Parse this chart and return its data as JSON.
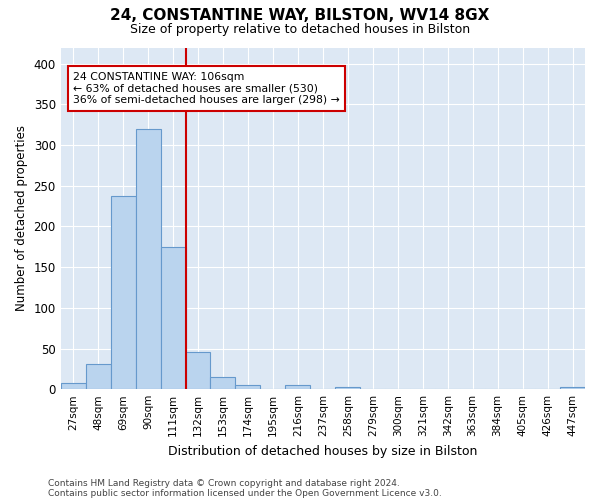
{
  "title_line1": "24, CONSTANTINE WAY, BILSTON, WV14 8GX",
  "title_line2": "Size of property relative to detached houses in Bilston",
  "xlabel": "Distribution of detached houses by size in Bilston",
  "ylabel": "Number of detached properties",
  "bin_labels": [
    "27sqm",
    "48sqm",
    "69sqm",
    "90sqm",
    "111sqm",
    "132sqm",
    "153sqm",
    "174sqm",
    "195sqm",
    "216sqm",
    "237sqm",
    "258sqm",
    "279sqm",
    "300sqm",
    "321sqm",
    "342sqm",
    "363sqm",
    "384sqm",
    "405sqm",
    "426sqm",
    "447sqm"
  ],
  "bar_values": [
    8,
    31,
    238,
    320,
    175,
    46,
    15,
    5,
    0,
    5,
    0,
    3,
    0,
    0,
    0,
    0,
    0,
    0,
    0,
    0,
    3
  ],
  "bar_color": "#bad4ee",
  "bar_edge_color": "#6699cc",
  "vline_color": "#cc0000",
  "vline_linewidth": 1.5,
  "vline_x": 4.5,
  "annotation_text": "24 CONSTANTINE WAY: 106sqm\n← 63% of detached houses are smaller (530)\n36% of semi-detached houses are larger (298) →",
  "annotation_box_color": "white",
  "annotation_box_edge_color": "#cc0000",
  "ylim": [
    0,
    420
  ],
  "yticks": [
    0,
    50,
    100,
    150,
    200,
    250,
    300,
    350,
    400
  ],
  "bg_color": "#dde8f4",
  "footer_line1": "Contains HM Land Registry data © Crown copyright and database right 2024.",
  "footer_line2": "Contains public sector information licensed under the Open Government Licence v3.0.",
  "figsize": [
    6.0,
    5.0
  ],
  "dpi": 100
}
